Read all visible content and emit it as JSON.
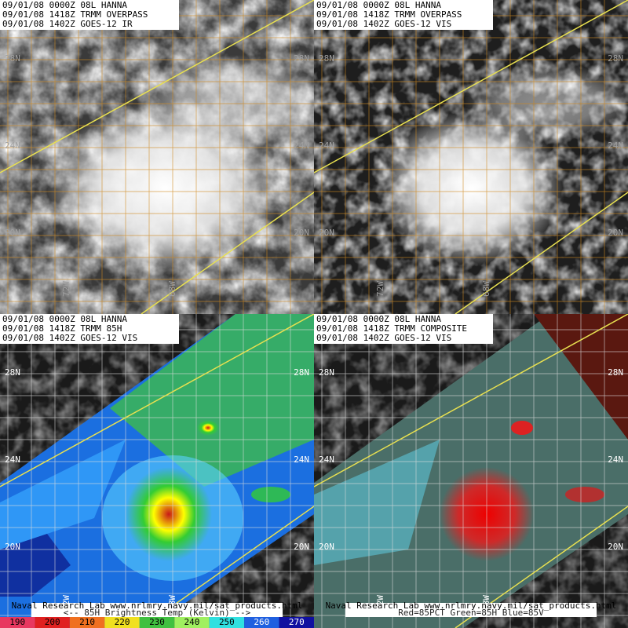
{
  "panels": [
    {
      "header": [
        "09/01/08 0000Z 08L HANNA",
        "09/01/08 1418Z TRMM OVERPASS",
        "09/01/08 1402Z GOES-12 IR"
      ]
    },
    {
      "header": [
        "09/01/08 0000Z 08L HANNA",
        "09/01/08 1418Z TRMM OVERPASS",
        "09/01/08 1402Z GOES-12 VIS"
      ]
    },
    {
      "header": [
        "09/01/08 0000Z 08L HANNA",
        "09/01/08 1418Z TRMM 85H",
        "09/01/08 1402Z GOES-12 VIS"
      ],
      "footer": [
        "Naval Research Lab  www.nrlmry.navy.mil/sat_products.html",
        "<--  85H Brightness Temp (Kelvin)  -->"
      ]
    },
    {
      "header": [
        "09/01/08 0000Z 08L HANNA",
        "09/01/08 1418Z TRMM COMPOSITE",
        "09/01/08 1402Z GOES-12 VIS"
      ],
      "footer": [
        "Naval Research Lab  www.nrlmry.navy.mil/sat_products.html",
        "Red=85PCT  Green=85H  Blue=85V"
      ]
    }
  ],
  "lat_labels": [
    "28N",
    "24N",
    "20N"
  ],
  "lon_labels": [
    "72W",
    "68W"
  ],
  "colorbar": [
    190,
    200,
    210,
    220,
    230,
    240,
    250,
    260,
    270
  ]
}
